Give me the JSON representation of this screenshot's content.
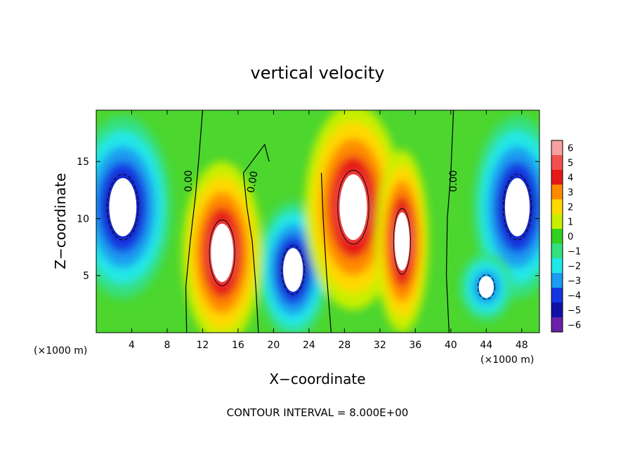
{
  "chart_data": {
    "type": "heatmap",
    "title": "vertical velocity",
    "xlabel": "X−coordinate",
    "ylabel": "Z−coordinate",
    "x_unit_left": "(×1000 m)",
    "x_unit_right": "(×1000 m)",
    "xlim": [
      0,
      50
    ],
    "ylim": [
      0,
      19.5
    ],
    "x_ticks": [
      4,
      8,
      12,
      16,
      20,
      24,
      28,
      32,
      36,
      40,
      44,
      48
    ],
    "x_tick_labels": [
      "4",
      "8",
      "12",
      "16",
      "20",
      "24",
      "28",
      "32",
      "36",
      "40",
      "44",
      "48"
    ],
    "y_ticks": [
      5,
      10,
      15
    ],
    "y_tick_labels": [
      "5",
      "10",
      "15"
    ],
    "colorbar": {
      "levels": [
        6,
        5,
        4,
        3,
        2,
        1,
        0,
        -1,
        -2,
        -3,
        -4,
        -5,
        -6
      ],
      "labels": [
        "6",
        "5",
        "4",
        "3",
        "2",
        "1",
        "0",
        "−1",
        "−2",
        "−3",
        "−4",
        "−5",
        "−6"
      ],
      "colors": [
        "#f6a0a0",
        "#f25050",
        "#e61818",
        "#ff8a00",
        "#ffd800",
        "#c8ef00",
        "#32d020",
        "#34e080",
        "#20e8e8",
        "#1a9cf0",
        "#1436e0",
        "#1010a8",
        "#6a20a8"
      ]
    },
    "background_color": "#4cd62e",
    "contour_labels": [
      "0.00",
      "0.00",
      "0.00"
    ],
    "note": "CONTOUR INTERVAL = 8.000E+00",
    "features": [
      {
        "name": "downdraft-left",
        "sign": -1,
        "cx": 3,
        "cz": 11,
        "rx": 5.5,
        "rz": 8,
        "peak": 6
      },
      {
        "name": "downdraft-right",
        "sign": -1,
        "cx": 47.5,
        "cz": 11,
        "rx": 5,
        "rz": 8,
        "peak": 6
      },
      {
        "name": "downdraft-20",
        "sign": -1,
        "cx": 22.2,
        "cz": 5.5,
        "rx": 4,
        "rz": 6,
        "peak": 6
      },
      {
        "name": "downdraft-40",
        "sign": -1,
        "cx": 44,
        "cz": 4,
        "rx": 3,
        "rz": 3,
        "peak": 4
      },
      {
        "name": "updraft-14",
        "sign": 1,
        "cx": 14.2,
        "cz": 7,
        "rx": 4.5,
        "rz": 8,
        "peak": 6
      },
      {
        "name": "updraft-28",
        "sign": 1,
        "cx": 29,
        "cz": 11,
        "rx": 5.5,
        "rz": 9,
        "peak": 6
      },
      {
        "name": "updraft-34",
        "sign": 1,
        "cx": 34.5,
        "cz": 8,
        "rx": 3,
        "rz": 8,
        "peak": 6
      }
    ]
  }
}
